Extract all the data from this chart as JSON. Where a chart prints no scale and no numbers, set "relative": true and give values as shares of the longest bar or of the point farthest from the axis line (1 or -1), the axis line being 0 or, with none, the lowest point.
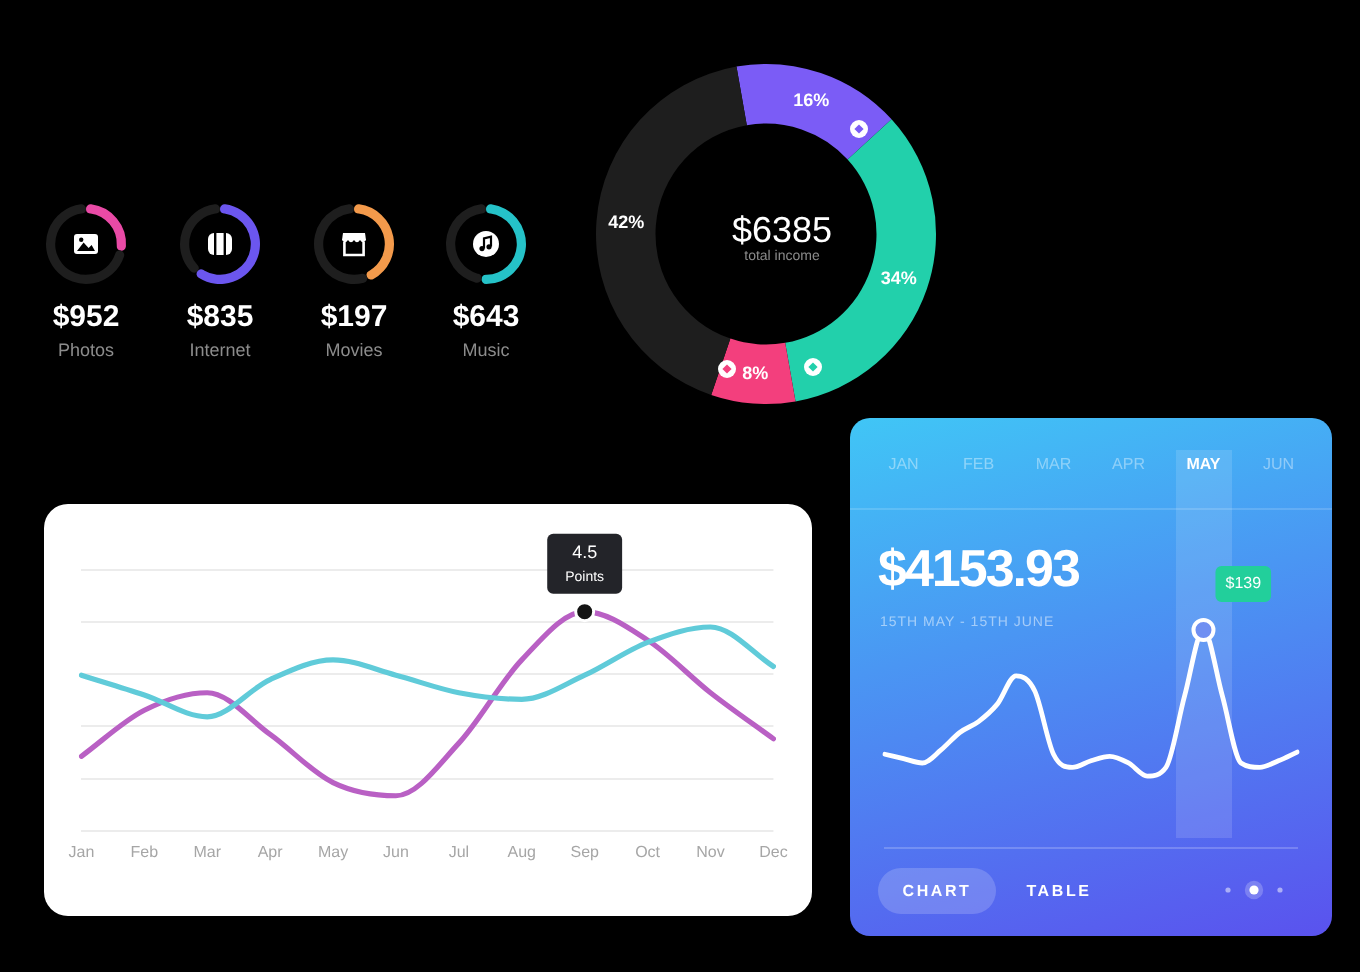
{
  "chart_data": [
    {
      "type": "donut",
      "title": "$952",
      "subtitle": "Photos",
      "categories": [
        null,
        null
      ],
      "values": [
        28,
        72
      ],
      "colors": [
        "#e94aa6",
        "#1e1e1e"
      ]
    },
    {
      "type": "donut",
      "title": "$835",
      "subtitle": "Internet",
      "categories": [
        null,
        null
      ],
      "values": [
        61,
        39
      ],
      "colors": [
        "#6b56ef",
        "#1e1e1e"
      ]
    },
    {
      "type": "donut",
      "title": "$197",
      "subtitle": "Movies",
      "categories": [
        null,
        null
      ],
      "values": [
        44,
        56
      ],
      "colors": [
        "#f39a4b",
        "#1e1e1e"
      ]
    },
    {
      "type": "donut",
      "title": "$643",
      "subtitle": "Music",
      "categories": [
        null,
        null
      ],
      "values": [
        52,
        48
      ],
      "colors": [
        "#25c2c8",
        "#1e1e1e"
      ]
    },
    {
      "type": "donut",
      "title": "$6385",
      "subtitle": "total income",
      "categories": [
        null,
        null,
        null,
        null
      ],
      "values": [
        16,
        34,
        8,
        42
      ],
      "colors": [
        "#7b5cf6",
        "#22d0ab",
        "#f33f7d",
        "#1e1e1e"
      ],
      "value_labels": [
        "16%",
        "34%",
        "8%",
        "42%"
      ]
    },
    {
      "type": "line",
      "categories": [
        "Jan",
        "Feb",
        "Mar",
        "Apr",
        "May",
        "Jun",
        "Jul",
        "Aug",
        "Sep",
        "Oct",
        "Nov",
        "Dec"
      ],
      "series": [
        {
          "color": "#60cbd9",
          "values": [
            0.71,
            0.62,
            0.52,
            0.69,
            0.78,
            0.71,
            0.63,
            0.6,
            0.71,
            0.86,
            0.93,
            0.75
          ]
        },
        {
          "color": "#b960c4",
          "values": [
            0.34,
            0.55,
            0.63,
            0.44,
            0.22,
            0.16,
            0.4,
            0.78,
            1,
            0.87,
            0.63,
            0.42
          ]
        }
      ],
      "relative": true,
      "grid": "y",
      "annotations": [
        {
          "text": "4.5\nPoints",
          "x": "Sep",
          "y": 1
        }
      ]
    },
    {
      "type": "line",
      "title": "$4153.93",
      "subtitle": "15TH MAY - 15TH JUNE",
      "categories": [
        null,
        "JAN",
        null,
        null,
        null,
        "FEB",
        null,
        null,
        null,
        "MAR",
        null,
        null,
        null,
        "APR",
        null,
        null,
        null,
        "MAY",
        null,
        null,
        null,
        "JUN",
        null
      ],
      "series": [
        {
          "color": "#ffffff",
          "values": [
            0.43,
            0.41,
            0.39,
            0.45,
            0.53,
            0.58,
            0.66,
            0.79,
            0.72,
            0.43,
            0.37,
            0.4,
            0.42,
            0.39,
            0.33,
            0.37,
            0.7,
            1,
            0.7,
            0.39,
            0.37,
            0.4,
            0.44
          ]
        }
      ],
      "relative": true,
      "annotations": [
        {
          "text": "$139",
          "x": "MAY",
          "y": 1
        },
        "CHART",
        "TABLE"
      ]
    }
  ]
}
